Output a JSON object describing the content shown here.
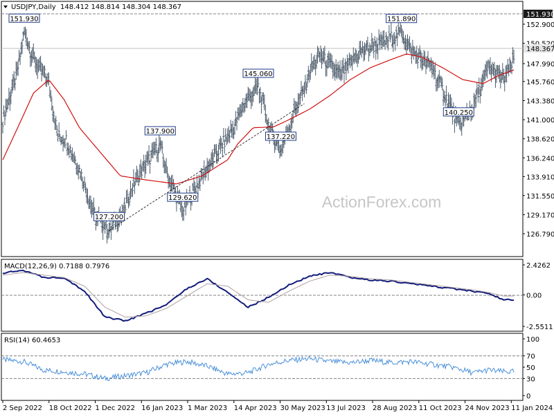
{
  "chart_data": [
    {
      "type": "bar",
      "title": "USDJPY,Daily",
      "ohlc_header": "148.412 148.814 148.304 148.367",
      "ohlc": {
        "open": 148.412,
        "high": 148.814,
        "low": 148.304,
        "close": 148.367
      },
      "watermark": "ActionForex.com",
      "ylim": [
        126.79,
        152.9
      ],
      "y_ticks": [
        "152.900",
        "150.520",
        "147.990",
        "145.760",
        "143.380",
        "141.000",
        "138.620",
        "136.240",
        "133.910",
        "131.550",
        "129.170",
        "126.790"
      ],
      "x_tick_labels": [
        "2 Sep 2022",
        "18 Oct 2022",
        "1 Dec 2022",
        "16 Jan 2023",
        "1 Mar 2023",
        "14 Apr 2023",
        "30 May 2023",
        "13 Jul 2023",
        "28 Aug 2023",
        "11 Oct 2023",
        "24 Nov 2023",
        "11 Jan 2024"
      ],
      "series": [
        {
          "name": "",
          "kind": "price_ohlc_bars",
          "color": "#4a5a6a",
          "x_index": [
            0,
            14,
            21,
            30,
            44,
            54,
            62,
            76,
            82,
            90,
            104,
            118,
            128,
            140,
            154,
            160,
            176,
            186,
            210,
            226,
            236,
            250,
            262,
            272,
            280,
            288,
            296,
            300
          ],
          "close": [
            141.0,
            146.8,
            151.93,
            148.5,
            146.0,
            139.0,
            138.5,
            134.5,
            132.0,
            129.0,
            127.2,
            129.5,
            133.0,
            135.5,
            137.9,
            134.5,
            129.62,
            132.0,
            137.0,
            140.0,
            143.0,
            145.06,
            139.5,
            137.22,
            140.0,
            143.0,
            145.0,
            147.0
          ]
        },
        {
          "name": "",
          "kind": "moving_average",
          "color": "#d01010",
          "x_index": [
            0,
            20,
            30,
            45,
            60,
            75,
            95,
            115,
            140,
            170,
            195,
            220,
            230,
            245,
            265,
            280,
            300
          ],
          "values": [
            136.0,
            141.5,
            144.3,
            146.0,
            143.5,
            140.0,
            137.0,
            134.0,
            133.5,
            133.0,
            134.0,
            136.0,
            138.0,
            140.0,
            140.1,
            141.0,
            142.3
          ]
        }
      ],
      "annotations": [
        {
          "text": "151.930",
          "x_index": 21,
          "value": 151.93
        },
        {
          "text": "127.200",
          "x_index": 104,
          "value": 127.2
        },
        {
          "text": "137.900",
          "x_index": 154,
          "value": 137.9
        },
        {
          "text": "129.620",
          "x_index": 176,
          "value": 129.62
        },
        {
          "text": "145.060",
          "x_index": 250,
          "value": 145.06
        },
        {
          "text": "137.220",
          "x_index": 272,
          "value": 137.22
        },
        {
          "text": "151.890",
          "x_index": 390,
          "value": 151.89
        },
        {
          "text": "140.250",
          "x_index": 446,
          "value": 140.25
        }
      ],
      "trendline": {
        "from": {
          "x_index": 104,
          "value": 127.2
        },
        "to": {
          "x_index": 295,
          "value": 143.0
        }
      },
      "price_labels": [
        {
          "text": "151.930",
          "value": 151.93
        },
        {
          "text": "148.367",
          "value": 148.367
        }
      ],
      "colors": {
        "bars": "#4a5a6a",
        "ma": "#d01010",
        "label_border": "#1e3a8a",
        "grid_dash": "#808080"
      }
    },
    {
      "type": "line",
      "title": "MACD(12,26,9) 0.7188 0.7976",
      "ylim": [
        -2.5511,
        2.4262
      ],
      "y_ticks": [
        "2.4262",
        "0.00",
        "-2.5511"
      ],
      "series": [
        {
          "name": "",
          "kind": "macd",
          "color": "#101a7a",
          "x_index": [
            0,
            20,
            40,
            60,
            80,
            100,
            120,
            140,
            160,
            180,
            200,
            220,
            240,
            260,
            280,
            300,
            320,
            340,
            360,
            380,
            400,
            420,
            440,
            460,
            475,
            490
          ],
          "values": [
            1.75,
            2.0,
            1.4,
            1.4,
            0.3,
            -1.8,
            -2.1,
            -1.5,
            -0.8,
            0.5,
            1.3,
            0.2,
            -1.0,
            -0.2,
            0.8,
            1.5,
            1.8,
            1.4,
            1.2,
            1.1,
            0.9,
            0.7,
            0.5,
            0.3,
            0.1,
            -0.4
          ]
        },
        {
          "name": "",
          "kind": "signal",
          "color": "#b0a0a0",
          "x_index": [
            0,
            20,
            40,
            60,
            80,
            100,
            120,
            140,
            160,
            180,
            200,
            220,
            240,
            260,
            280,
            300,
            320,
            340,
            360,
            380,
            400,
            420,
            440,
            460,
            475,
            490
          ],
          "values": [
            1.6,
            1.8,
            1.6,
            1.4,
            0.7,
            -1.0,
            -1.8,
            -1.7,
            -1.1,
            -0.1,
            0.9,
            0.7,
            -0.4,
            -0.6,
            0.3,
            1.1,
            1.6,
            1.5,
            1.3,
            1.2,
            1.0,
            0.8,
            0.6,
            0.4,
            0.2,
            -0.1
          ]
        }
      ]
    },
    {
      "type": "line",
      "title": "RSI(14) 60.4653",
      "ylim": [
        0,
        100
      ],
      "y_ticks": [
        "100",
        "70",
        "50",
        "30",
        "0"
      ],
      "levels": [
        70,
        30
      ],
      "series": [
        {
          "name": "",
          "kind": "rsi",
          "color": "#4a90d9",
          "x_index": [
            0,
            20,
            40,
            60,
            80,
            100,
            120,
            140,
            160,
            180,
            200,
            220,
            240,
            260,
            280,
            300,
            320,
            340,
            360,
            380,
            400,
            420,
            440,
            460,
            475,
            490
          ],
          "values": [
            63,
            60,
            45,
            42,
            38,
            30,
            35,
            40,
            55,
            60,
            52,
            38,
            40,
            55,
            62,
            65,
            60,
            58,
            62,
            58,
            60,
            55,
            50,
            40,
            45,
            42
          ]
        }
      ]
    }
  ]
}
